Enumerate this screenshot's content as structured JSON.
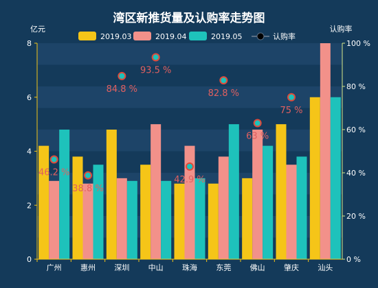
{
  "chart_data": {
    "type": "bar",
    "title": "湾区新推货量及认购率走势图",
    "ylabel_left": "亿元",
    "ylabel_right": "认购率",
    "ylim_left": [
      0,
      8
    ],
    "ylim_right": [
      0,
      100
    ],
    "left_ticks": [
      "0",
      "2",
      "4",
      "6",
      "8"
    ],
    "right_ticks": [
      "0 %",
      "20 %",
      "40 %",
      "60 %",
      "80 %",
      "100 %"
    ],
    "categories": [
      "广州",
      "惠州",
      "深圳",
      "中山",
      "珠海",
      "东莞",
      "佛山",
      "肇庆",
      "汕头"
    ],
    "series": [
      {
        "name": "2019.03",
        "color": "#f5c518",
        "values": [
          4.2,
          3.8,
          4.8,
          3.5,
          2.8,
          2.8,
          3.0,
          5.0,
          6.0
        ]
      },
      {
        "name": "2019.04",
        "color": "#f2918a",
        "values": [
          2.9,
          2.8,
          3.0,
          5.0,
          4.2,
          3.8,
          4.8,
          3.5,
          8.0
        ]
      },
      {
        "name": "2019.05",
        "color": "#1ec2bb",
        "values": [
          4.8,
          3.5,
          2.9,
          2.9,
          3.0,
          5.0,
          4.2,
          3.8,
          6.0
        ]
      }
    ],
    "line_series": {
      "name": "认购率",
      "values": [
        46.2,
        38.8,
        84.8,
        93.5,
        42.9,
        82.8,
        63,
        75,
        null
      ],
      "labels": [
        "46.2 %",
        "38.8 %",
        "84.8 %",
        "93.5 %",
        "42.9 %",
        "82.8 %",
        "63 %",
        "75 %",
        ""
      ]
    },
    "legend_position": "top"
  }
}
